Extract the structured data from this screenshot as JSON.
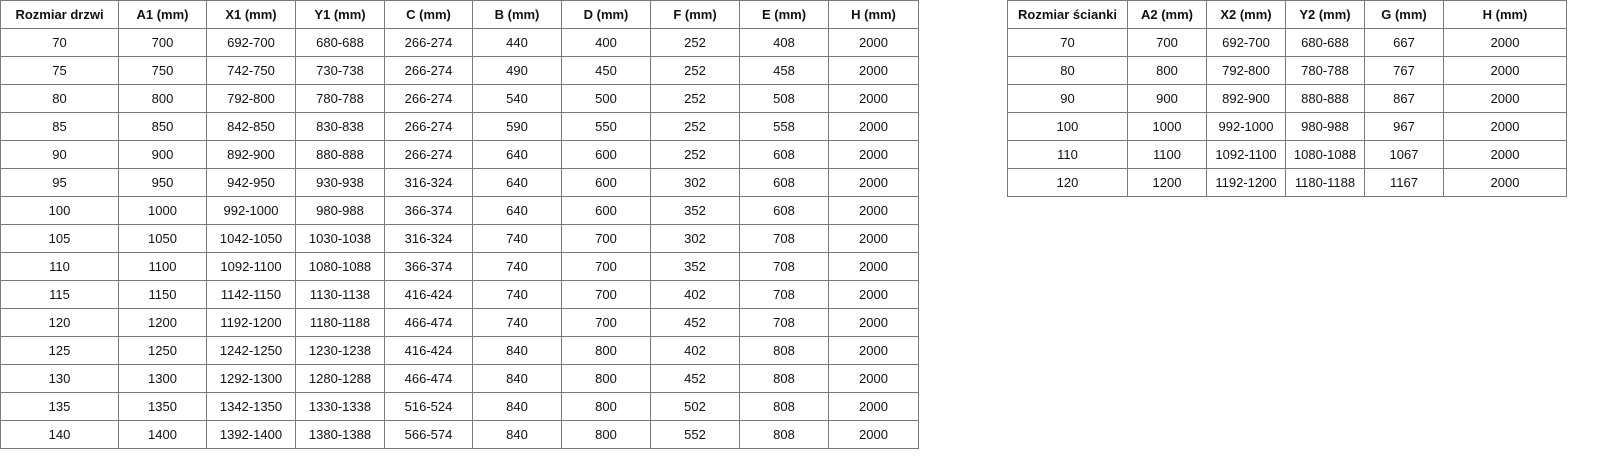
{
  "doors_table": {
    "headers": [
      "Rozmiar drzwi",
      "A1 (mm)",
      "X1 (mm)",
      "Y1 (mm)",
      "C (mm)",
      "B (mm)",
      "D (mm)",
      "F (mm)",
      "E (mm)",
      "H (mm)"
    ],
    "rows": [
      [
        "70",
        "700",
        "692-700",
        "680-688",
        "266-274",
        "440",
        "400",
        "252",
        "408",
        "2000"
      ],
      [
        "75",
        "750",
        "742-750",
        "730-738",
        "266-274",
        "490",
        "450",
        "252",
        "458",
        "2000"
      ],
      [
        "80",
        "800",
        "792-800",
        "780-788",
        "266-274",
        "540",
        "500",
        "252",
        "508",
        "2000"
      ],
      [
        "85",
        "850",
        "842-850",
        "830-838",
        "266-274",
        "590",
        "550",
        "252",
        "558",
        "2000"
      ],
      [
        "90",
        "900",
        "892-900",
        "880-888",
        "266-274",
        "640",
        "600",
        "252",
        "608",
        "2000"
      ],
      [
        "95",
        "950",
        "942-950",
        "930-938",
        "316-324",
        "640",
        "600",
        "302",
        "608",
        "2000"
      ],
      [
        "100",
        "1000",
        "992-1000",
        "980-988",
        "366-374",
        "640",
        "600",
        "352",
        "608",
        "2000"
      ],
      [
        "105",
        "1050",
        "1042-1050",
        "1030-1038",
        "316-324",
        "740",
        "700",
        "302",
        "708",
        "2000"
      ],
      [
        "110",
        "1100",
        "1092-1100",
        "1080-1088",
        "366-374",
        "740",
        "700",
        "352",
        "708",
        "2000"
      ],
      [
        "115",
        "1150",
        "1142-1150",
        "1130-1138",
        "416-424",
        "740",
        "700",
        "402",
        "708",
        "2000"
      ],
      [
        "120",
        "1200",
        "1192-1200",
        "1180-1188",
        "466-474",
        "740",
        "700",
        "452",
        "708",
        "2000"
      ],
      [
        "125",
        "1250",
        "1242-1250",
        "1230-1238",
        "416-424",
        "840",
        "800",
        "402",
        "808",
        "2000"
      ],
      [
        "130",
        "1300",
        "1292-1300",
        "1280-1288",
        "466-474",
        "840",
        "800",
        "452",
        "808",
        "2000"
      ],
      [
        "135",
        "1350",
        "1342-1350",
        "1330-1338",
        "516-524",
        "840",
        "800",
        "502",
        "808",
        "2000"
      ],
      [
        "140",
        "1400",
        "1392-1400",
        "1380-1388",
        "566-574",
        "840",
        "800",
        "552",
        "808",
        "2000"
      ]
    ]
  },
  "wall_table": {
    "headers": [
      "Rozmiar ścianki",
      "A2 (mm)",
      "X2 (mm)",
      "Y2 (mm)",
      "G (mm)",
      "H (mm)"
    ],
    "rows": [
      [
        "70",
        "700",
        "692-700",
        "680-688",
        "667",
        "2000"
      ],
      [
        "80",
        "800",
        "792-800",
        "780-788",
        "767",
        "2000"
      ],
      [
        "90",
        "900",
        "892-900",
        "880-888",
        "867",
        "2000"
      ],
      [
        "100",
        "1000",
        "992-1000",
        "980-988",
        "967",
        "2000"
      ],
      [
        "110",
        "1100",
        "1092-1100",
        "1080-1088",
        "1067",
        "2000"
      ],
      [
        "120",
        "1200",
        "1192-1200",
        "1180-1188",
        "1167",
        "2000"
      ]
    ]
  }
}
